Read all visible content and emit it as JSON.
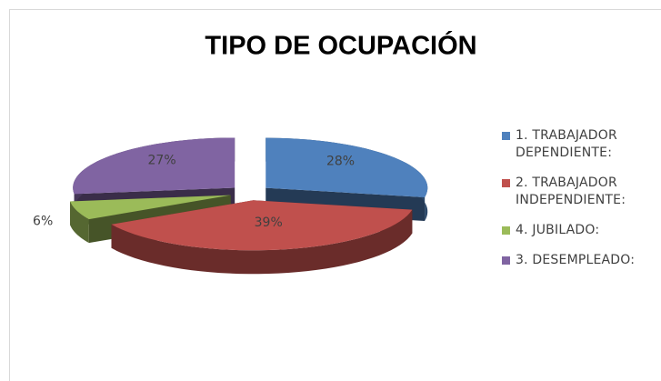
{
  "chart_data": {
    "type": "pie",
    "title": "TIPO DE OCUPACIÓN",
    "categories": [
      "1. TRABAJADOR DEPENDIENTE:",
      "2. TRABAJADOR INDEPENDIENTE:",
      "4. JUBILADO:",
      "3. DESEMPLEADO:"
    ],
    "values": [
      28,
      39,
      6,
      27
    ],
    "value_labels": [
      "28%",
      "39%",
      "6%",
      "27%"
    ],
    "colors": [
      "#4f81bd",
      "#c0504d",
      "#9bbb59",
      "#8064a2"
    ],
    "legend": "right"
  }
}
